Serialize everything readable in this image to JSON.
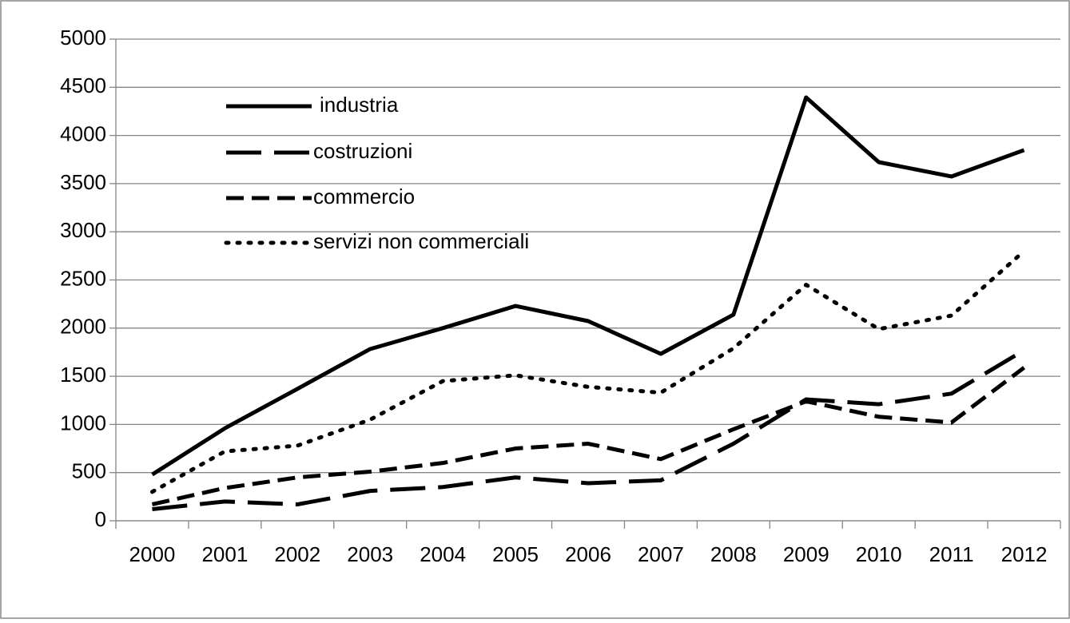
{
  "chart_data": {
    "type": "line",
    "categories": [
      "2000",
      "2001",
      "2002",
      "2003",
      "2004",
      "2005",
      "2006",
      "2007",
      "2008",
      "2009",
      "2010",
      "2011",
      "2012"
    ],
    "series": [
      {
        "name": "industria",
        "color": "#000000",
        "dash": "solid",
        "values": [
          480,
          960,
          1370,
          1783,
          2000,
          2230,
          2073,
          1733,
          2140,
          4395,
          3723,
          3574,
          3848
        ]
      },
      {
        "name": "costruzioni",
        "color": "#000000",
        "dash": "long-dash",
        "values": [
          120,
          200,
          170,
          310,
          350,
          450,
          390,
          420,
          800,
          1260,
          1210,
          1320,
          1770
        ]
      },
      {
        "name": "commercio",
        "color": "#000000",
        "dash": "dash",
        "values": [
          170,
          340,
          450,
          510,
          600,
          750,
          800,
          640,
          950,
          1240,
          1080,
          1020,
          1590
        ]
      },
      {
        "name": "servizi non commerciali",
        "color": "#000000",
        "dash": "dot",
        "values": [
          300,
          720,
          780,
          1050,
          1450,
          1510,
          1390,
          1330,
          1790,
          2450,
          1990,
          2130,
          2800
        ]
      }
    ],
    "ylim": [
      0,
      5000
    ],
    "yticks": [
      0,
      500,
      1000,
      1500,
      2000,
      2500,
      3000,
      3500,
      4000,
      4500,
      5000
    ],
    "grid": true,
    "legend": "upper-left"
  }
}
